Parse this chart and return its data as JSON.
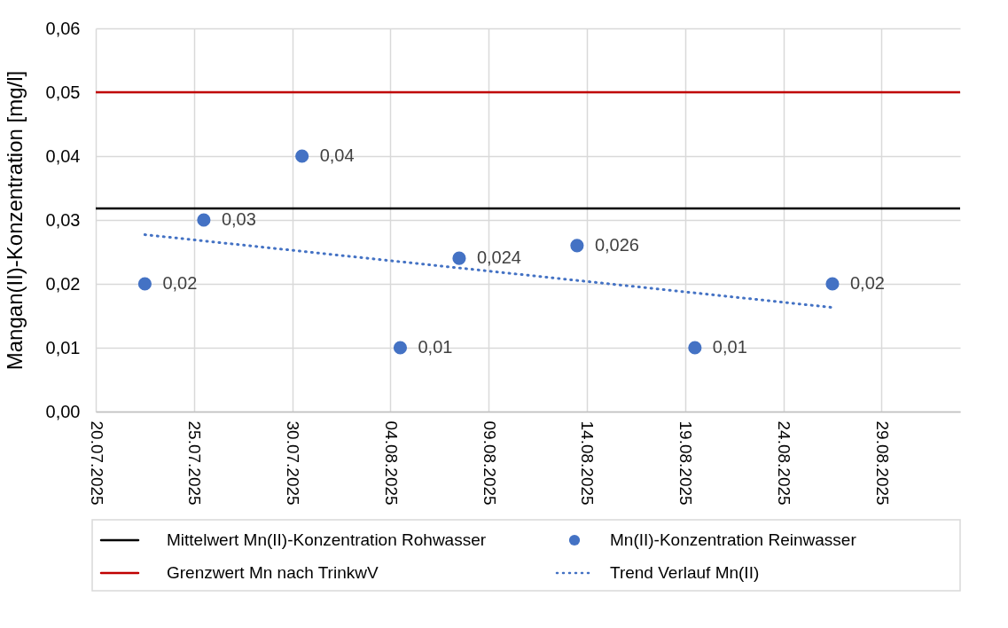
{
  "chart_data": {
    "type": "scatter",
    "ylabel": "Mangan(II)-Konzentration [mg/l]",
    "xlim": [
      "2025-07-20",
      "2025-09-02"
    ],
    "xticks": [
      {
        "value": "2025-07-20",
        "label": "20.07.2025"
      },
      {
        "value": "2025-07-25",
        "label": "25.07.2025"
      },
      {
        "value": "2025-07-30",
        "label": "30.07.2025"
      },
      {
        "value": "2025-08-04",
        "label": "04.08.2025"
      },
      {
        "value": "2025-08-09",
        "label": "09.08.2025"
      },
      {
        "value": "2025-08-14",
        "label": "14.08.2025"
      },
      {
        "value": "2025-08-19",
        "label": "19.08.2025"
      },
      {
        "value": "2025-08-24",
        "label": "24.08.2025"
      },
      {
        "value": "2025-08-29",
        "label": "29.08.2025"
      }
    ],
    "ylim": [
      0,
      0.06
    ],
    "yticks": [
      {
        "value": 0,
        "label": "0,00"
      },
      {
        "value": 0.01,
        "label": "0,01"
      },
      {
        "value": 0.02,
        "label": "0,02"
      },
      {
        "value": 0.03,
        "label": "0,03"
      },
      {
        "value": 0.04,
        "label": "0,04"
      },
      {
        "value": 0.05,
        "label": "0,05"
      },
      {
        "value": 0.06,
        "label": "0,06"
      }
    ],
    "grid": true,
    "legend": "bottom",
    "marker": "circle",
    "ref_lines": [
      {
        "axis": "y",
        "value": 0.0318,
        "label": "Mittelwert Mn(II)-Konzentration Rohwasser",
        "color": "#000000",
        "line_style": "solid"
      },
      {
        "axis": "y",
        "value": 0.05,
        "label": "Grenzwert Mn nach TrinkwV",
        "color": "#c00000",
        "line_style": "solid"
      }
    ],
    "series": [
      {
        "name": "Mn(II)-Konzentration Reinwasser",
        "color": "#4472c4",
        "x": [
          "2025-07-22T12:00",
          "2025-07-25T12:00",
          "2025-07-30T12:00",
          "2025-08-04T12:00",
          "2025-08-07T12:00",
          "2025-08-13T12:00",
          "2025-08-19T12:00",
          "2025-08-26T12:00"
        ],
        "values": [
          0.02,
          0.03,
          0.04,
          0.01,
          0.024,
          0.026,
          0.01,
          0.02
        ],
        "value_labels": [
          "0,02",
          "0,03",
          "0,04",
          "0,01",
          "0,024",
          "0,026",
          "0,01",
          "0,02"
        ]
      },
      {
        "name": "Trend Verlauf Mn(II)",
        "type": "line",
        "line_style": "dotted",
        "marker": "none",
        "color": "#4472c4",
        "x": [
          "2025-07-22T12:00",
          "2025-08-26T12:00"
        ],
        "values": [
          0.0277,
          0.0163
        ]
      }
    ]
  }
}
